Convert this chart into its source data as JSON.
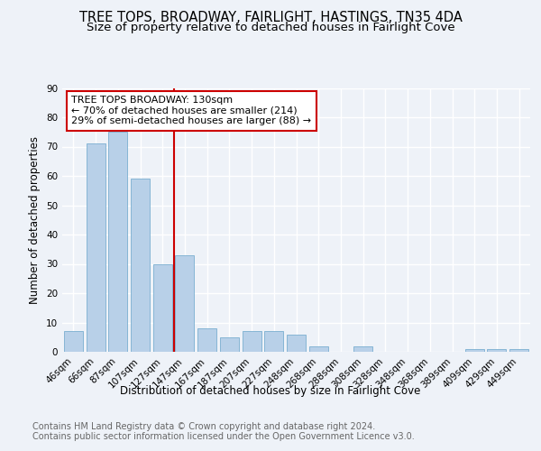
{
  "title": "TREE TOPS, BROADWAY, FAIRLIGHT, HASTINGS, TN35 4DA",
  "subtitle": "Size of property relative to detached houses in Fairlight Cove",
  "xlabel": "Distribution of detached houses by size in Fairlight Cove",
  "ylabel": "Number of detached properties",
  "categories": [
    "46sqm",
    "66sqm",
    "87sqm",
    "107sqm",
    "127sqm",
    "147sqm",
    "167sqm",
    "187sqm",
    "207sqm",
    "227sqm",
    "248sqm",
    "268sqm",
    "288sqm",
    "308sqm",
    "328sqm",
    "348sqm",
    "368sqm",
    "389sqm",
    "409sqm",
    "429sqm",
    "449sqm"
  ],
  "values": [
    7,
    71,
    75,
    59,
    30,
    33,
    8,
    5,
    7,
    7,
    6,
    2,
    0,
    2,
    0,
    0,
    0,
    0,
    1,
    1,
    1
  ],
  "bar_color": "#b8d0e8",
  "bar_edge_color": "#7aaed0",
  "annotation_text": "TREE TOPS BROADWAY: 130sqm\n← 70% of detached houses are smaller (214)\n29% of semi-detached houses are larger (88) →",
  "annotation_box_color": "#ffffff",
  "annotation_box_edge_color": "#cc0000",
  "vline_color": "#cc0000",
  "ylim": [
    0,
    90
  ],
  "yticks": [
    0,
    10,
    20,
    30,
    40,
    50,
    60,
    70,
    80,
    90
  ],
  "footer_text": "Contains HM Land Registry data © Crown copyright and database right 2024.\nContains public sector information licensed under the Open Government Licence v3.0.",
  "background_color": "#eef2f8",
  "plot_bg_color": "#eef2f8",
  "grid_color": "#ffffff",
  "title_fontsize": 10.5,
  "subtitle_fontsize": 9.5,
  "label_fontsize": 8.5,
  "tick_fontsize": 7.5,
  "footer_fontsize": 7,
  "annot_fontsize": 8
}
